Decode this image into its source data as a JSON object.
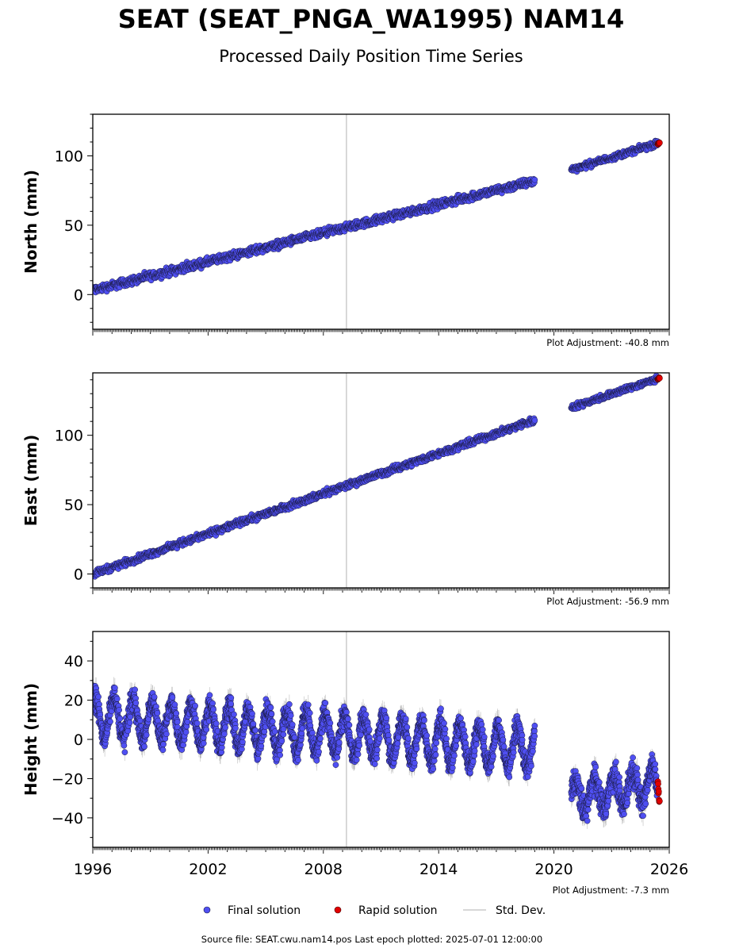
{
  "header": {
    "title": "SEAT (SEAT_PNGA_WA1995) NAM14",
    "subtitle": "Processed Daily Position Time Series"
  },
  "footer": {
    "source": "Source file: SEAT.cwu.nam14.pos  Last epoch plotted: 2025-07-01 12:00:00"
  },
  "legend": {
    "final": "Final solution",
    "rapid": "Rapid solution",
    "stddev": "Std. Dev."
  },
  "colors": {
    "final_fill": "#4f4ff2",
    "final_edge": "#1a1a40",
    "rapid_fill": "#e00000",
    "stddev": "#999999",
    "marker_line": "#cccccc"
  },
  "chart_data": [
    {
      "type": "scatter",
      "ylabel": "North (mm)",
      "xlim": [
        1996,
        2026
      ],
      "ylim": [
        -25,
        130
      ],
      "yticks": [
        0,
        50,
        100
      ],
      "adjustment": "Plot Adjustment: -40.8 mm",
      "marker_year": 2009.2,
      "series": [
        {
          "kind": "final",
          "x": [
            1996.0,
            2019.0
          ],
          "y": [
            3,
            82
          ],
          "noise": 2.5
        },
        {
          "kind": "final",
          "x": [
            2020.9,
            2025.4
          ],
          "y": [
            90,
            109
          ],
          "noise": 1.8
        },
        {
          "kind": "rapid",
          "x": [
            2025.4,
            2025.5
          ],
          "y": [
            108.5,
            109.5
          ],
          "noise": 0.5
        }
      ]
    },
    {
      "type": "scatter",
      "ylabel": "East (mm)",
      "xlim": [
        1996,
        2026
      ],
      "ylim": [
        -10,
        145
      ],
      "yticks": [
        0,
        50,
        100
      ],
      "adjustment": "Plot Adjustment: -56.9 mm",
      "marker_year": 2009.2,
      "series": [
        {
          "kind": "final",
          "x": [
            1996.0,
            2019.0
          ],
          "y": [
            0,
            111
          ],
          "noise": 2.0
        },
        {
          "kind": "final",
          "x": [
            2020.9,
            2025.4
          ],
          "y": [
            120,
            141
          ],
          "noise": 1.8
        },
        {
          "kind": "rapid",
          "x": [
            2025.4,
            2025.5
          ],
          "y": [
            140.5,
            141.5
          ],
          "noise": 0.5
        }
      ]
    },
    {
      "type": "scatter",
      "ylabel": "Height (mm)",
      "xlim": [
        1996,
        2026
      ],
      "ylim": [
        -55,
        55
      ],
      "yticks": [
        -40,
        -20,
        0,
        20,
        40
      ],
      "xticks": [
        1996,
        2002,
        2008,
        2014,
        2020,
        2026
      ],
      "adjustment": "Plot Adjustment: -7.3 mm",
      "marker_year": 2009.2,
      "series": [
        {
          "kind": "final",
          "x": [
            1996.0,
            2019.0
          ],
          "y": [
            12,
            -5
          ],
          "noise": 5.0,
          "seasonal": 10
        },
        {
          "kind": "final",
          "x": [
            2020.9,
            2025.4
          ],
          "y": [
            -30,
            -22
          ],
          "noise": 6.0,
          "seasonal": 8
        },
        {
          "kind": "rapid",
          "x": [
            2025.4,
            2025.5
          ],
          "y": [
            -22,
            -34
          ],
          "noise": 3.0
        }
      ]
    }
  ]
}
